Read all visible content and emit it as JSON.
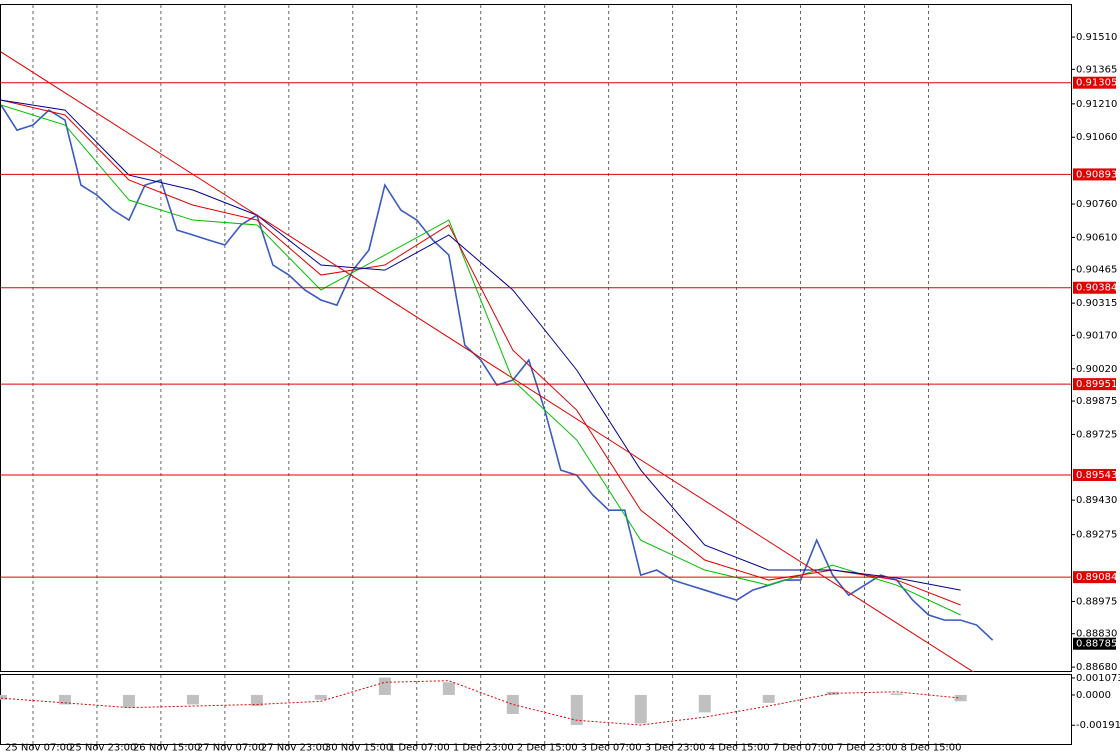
{
  "chart_data": [
    {
      "type": "line",
      "xlim": [
        0,
        66.9
      ],
      "ylim": [
        0.88658,
        0.91654
      ],
      "grid": true,
      "xticks": [
        {
          "value": 2,
          "label": "25 Nov 07:00"
        },
        {
          "value": 6,
          "label": "25 Nov 23:00"
        },
        {
          "value": 10,
          "label": "26 Nov 15:00"
        },
        {
          "value": 14,
          "label": "27 Nov 07:00"
        },
        {
          "value": 18,
          "label": "27 Nov 23:00"
        },
        {
          "value": 22,
          "label": "30 Nov 15:00"
        },
        {
          "value": 26,
          "label": "1 Dec 07:00"
        },
        {
          "value": 30,
          "label": "1 Dec 23:00"
        },
        {
          "value": 34,
          "label": "2 Dec 15:00"
        },
        {
          "value": 38,
          "label": "3 Dec 07:00"
        },
        {
          "value": 42,
          "label": "3 Dec 23:00"
        },
        {
          "value": 46,
          "label": "4 Dec 15:00"
        },
        {
          "value": 50,
          "label": "7 Dec 07:00"
        },
        {
          "value": 54,
          "label": "7 Dec 23:00"
        },
        {
          "value": 58,
          "label": "8 Dec 15:00"
        }
      ],
      "yticks": [
        {
          "value": 0.9151,
          "label": "0.91510"
        },
        0.91365,
        {
          "value": 0.9121,
          "label": "0.91210"
        },
        {
          "value": 0.9106,
          "label": "0.91060"
        },
        {
          "value": 0.9076,
          "label": "0.90760"
        },
        {
          "value": 0.9061,
          "label": "0.90610"
        },
        0.90465,
        0.90315,
        {
          "value": 0.9017,
          "label": "0.90170"
        },
        {
          "value": 0.9002,
          "label": "0.90020"
        },
        0.89875,
        0.89725,
        {
          "value": 0.8943,
          "label": "0.89430"
        },
        0.89275,
        0.88975,
        {
          "value": 0.8883,
          "label": "0.88830"
        },
        {
          "value": 0.8868,
          "label": "0.88680"
        }
      ],
      "series": [
        {
          "color": "#3a5bc0",
          "x": [
            0,
            1,
            2,
            3,
            4,
            5,
            6,
            7,
            8,
            9,
            10,
            11,
            12,
            13,
            14,
            15,
            16,
            17,
            18,
            19,
            20,
            21,
            22,
            23,
            24,
            25,
            26,
            27,
            28,
            29,
            30,
            31,
            32,
            33,
            34,
            35,
            36,
            37,
            38,
            39,
            40,
            41,
            42,
            43,
            44,
            45,
            46,
            47,
            48,
            49,
            50,
            51,
            52,
            53,
            54,
            55,
            56,
            57,
            58,
            59,
            60,
            61,
            62
          ],
          "values": [
            0.91205,
            0.91092,
            0.91115,
            0.91182,
            0.91137,
            0.90845,
            0.908,
            0.90733,
            0.90688,
            0.90845,
            0.90868,
            0.90643,
            0.90621,
            0.90598,
            0.90576,
            0.90666,
            0.9071,
            0.90486,
            0.90441,
            0.90374,
            0.90329,
            0.90306,
            0.90463,
            0.90553,
            0.90845,
            0.90733,
            0.90688,
            0.90598,
            0.90531,
            0.90126,
            0.90059,
            0.89947,
            0.89969,
            0.90059,
            0.89834,
            0.89565,
            0.89542,
            0.89453,
            0.89385,
            0.89385,
            0.89093,
            0.89116,
            0.89071,
            0.89048,
            0.89026,
            0.89003,
            0.88981,
            0.89026,
            0.89048,
            0.89071,
            0.89071,
            0.8925,
            0.89093,
            0.89003,
            0.89048,
            0.89093,
            0.89071,
            0.88981,
            0.88914,
            0.88891,
            0.88891,
            0.88869,
            0.88801
          ]
        },
        {
          "color": "#00c000",
          "x": [
            0,
            4,
            8,
            12,
            16,
            20,
            24,
            28,
            32,
            36,
            40,
            44,
            48,
            52,
            56,
            60
          ],
          "values": [
            0.91205,
            0.91115,
            0.90778,
            0.90688,
            0.90666,
            0.90374,
            0.90531,
            0.90688,
            0.89969,
            0.897,
            0.8925,
            0.89116,
            0.89048,
            0.89138,
            0.89048,
            0.88914
          ]
        },
        {
          "color": "#e00000",
          "x": [
            0,
            4,
            8,
            12,
            16,
            20,
            24,
            28,
            32,
            36,
            40,
            44,
            48,
            52,
            56,
            60
          ],
          "values": [
            0.91227,
            0.9116,
            0.90868,
            0.90755,
            0.90688,
            0.90441,
            0.90486,
            0.90666,
            0.90104,
            0.89834,
            0.89385,
            0.89161,
            0.89071,
            0.89116,
            0.89071,
            0.88959
          ]
        },
        {
          "color": "#000090",
          "x": [
            0,
            4,
            8,
            12,
            16,
            20,
            24,
            28,
            32,
            36,
            40,
            44,
            48,
            52,
            56,
            60
          ],
          "values": [
            0.91227,
            0.91182,
            0.9089,
            0.90823,
            0.9071,
            0.90486,
            0.90463,
            0.90621,
            0.90374,
            0.90014,
            0.89565,
            0.89228,
            0.89116,
            0.89116,
            0.8908,
            0.89026
          ]
        },
        {
          "color": "#e00000",
          "x": [
            0,
            66
          ],
          "values": [
            0.91443,
            0.8842
          ]
        }
      ],
      "levels": [
        0.91305,
        0.90893,
        0.90384,
        0.89951,
        0.89543,
        0.89084
      ],
      "level_color": "#e00000",
      "current_price": 0.88785
    },
    {
      "type": "bar",
      "xlim": [
        0,
        66.9
      ],
      "ylim": [
        -0.00316,
        0.00126
      ],
      "yticks": [
        0.001073,
        {
          "value": 0,
          "label": "0.0000"
        },
        -0.001911
      ],
      "x": [
        0,
        4,
        8,
        12,
        16,
        20,
        24,
        28,
        32,
        36,
        40,
        44,
        48,
        52,
        56,
        60
      ],
      "values": [
        -0.0003,
        -0.0006,
        -0.0008,
        -0.0006,
        -0.0007,
        -0.0003,
        0.0011,
        0.0008,
        -0.0012,
        -0.0019,
        -0.0018,
        -0.0011,
        -0.0005,
        0.0002,
        0.0001,
        -0.0004
      ],
      "color": "#c0c0c0",
      "signal": {
        "color": "#e00000",
        "values": [
          -0.0002,
          -0.0005,
          -0.0008,
          -0.0007,
          -0.0006,
          -0.0004,
          0.0008,
          0.0009,
          -0.0006,
          -0.0016,
          -0.0019,
          -0.0014,
          -0.0007,
          0.0001,
          0.0002,
          -0.0002
        ]
      }
    }
  ]
}
